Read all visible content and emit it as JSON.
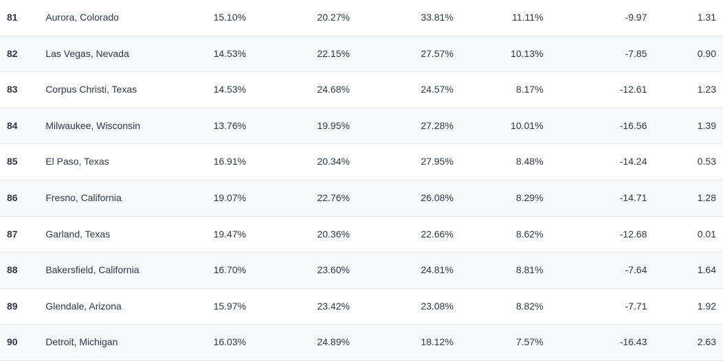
{
  "table": {
    "type": "table",
    "text_color": "#2d3748",
    "border_color": "#e5e7eb",
    "row_bg_even": "#f8f9fa",
    "row_bg_odd": "#ffffff",
    "rank_fontsize": 12,
    "rank_fontweight": 700,
    "cell_fontsize": 14,
    "columns": [
      {
        "key": "rank",
        "align": "left",
        "width": 56
      },
      {
        "key": "city",
        "align": "left",
        "width": 180
      },
      {
        "key": "c1",
        "align": "right",
        "width": 130
      },
      {
        "key": "c2",
        "align": "right",
        "width": 150
      },
      {
        "key": "c3",
        "align": "right",
        "width": 150
      },
      {
        "key": "c4",
        "align": "right",
        "width": 130
      },
      {
        "key": "c5",
        "align": "right",
        "width": 150
      },
      {
        "key": "c6",
        "align": "right",
        "width": 100
      }
    ],
    "rows": [
      {
        "rank": "81",
        "city": "Aurora, Colorado",
        "c1": "15.10%",
        "c2": "20.27%",
        "c3": "33.81%",
        "c4": "11.11%",
        "c5": "-9.97",
        "c6": "1.31"
      },
      {
        "rank": "82",
        "city": "Las Vegas, Nevada",
        "c1": "14.53%",
        "c2": "22.15%",
        "c3": "27.57%",
        "c4": "10.13%",
        "c5": "-7.85",
        "c6": "0.90"
      },
      {
        "rank": "83",
        "city": "Corpus Christi, Texas",
        "c1": "14.53%",
        "c2": "24.68%",
        "c3": "24.57%",
        "c4": "8.17%",
        "c5": "-12.61",
        "c6": "1.23"
      },
      {
        "rank": "84",
        "city": "Milwaukee, Wisconsin",
        "c1": "13.76%",
        "c2": "19.95%",
        "c3": "27.28%",
        "c4": "10.01%",
        "c5": "-16.56",
        "c6": "1.39"
      },
      {
        "rank": "85",
        "city": "El Paso, Texas",
        "c1": "16.91%",
        "c2": "20.34%",
        "c3": "27.95%",
        "c4": "8.48%",
        "c5": "-14.24",
        "c6": "0.53"
      },
      {
        "rank": "86",
        "city": "Fresno, California",
        "c1": "19.07%",
        "c2": "22.76%",
        "c3": "26.08%",
        "c4": "8.29%",
        "c5": "-14.71",
        "c6": "1.28"
      },
      {
        "rank": "87",
        "city": "Garland, Texas",
        "c1": "19.47%",
        "c2": "20.36%",
        "c3": "22.66%",
        "c4": "8.62%",
        "c5": "-12.68",
        "c6": "0.01"
      },
      {
        "rank": "88",
        "city": "Bakersfield, California",
        "c1": "16.70%",
        "c2": "23.60%",
        "c3": "24.81%",
        "c4": "8.81%",
        "c5": "-7.64",
        "c6": "1.64"
      },
      {
        "rank": "89",
        "city": "Glendale, Arizona",
        "c1": "15.97%",
        "c2": "23.42%",
        "c3": "23.08%",
        "c4": "8.82%",
        "c5": "-7.71",
        "c6": "1.92"
      },
      {
        "rank": "90",
        "city": "Detroit, Michigan",
        "c1": "16.03%",
        "c2": "24.89%",
        "c3": "18.12%",
        "c4": "7.57%",
        "c5": "-16.43",
        "c6": "2.63"
      }
    ]
  }
}
